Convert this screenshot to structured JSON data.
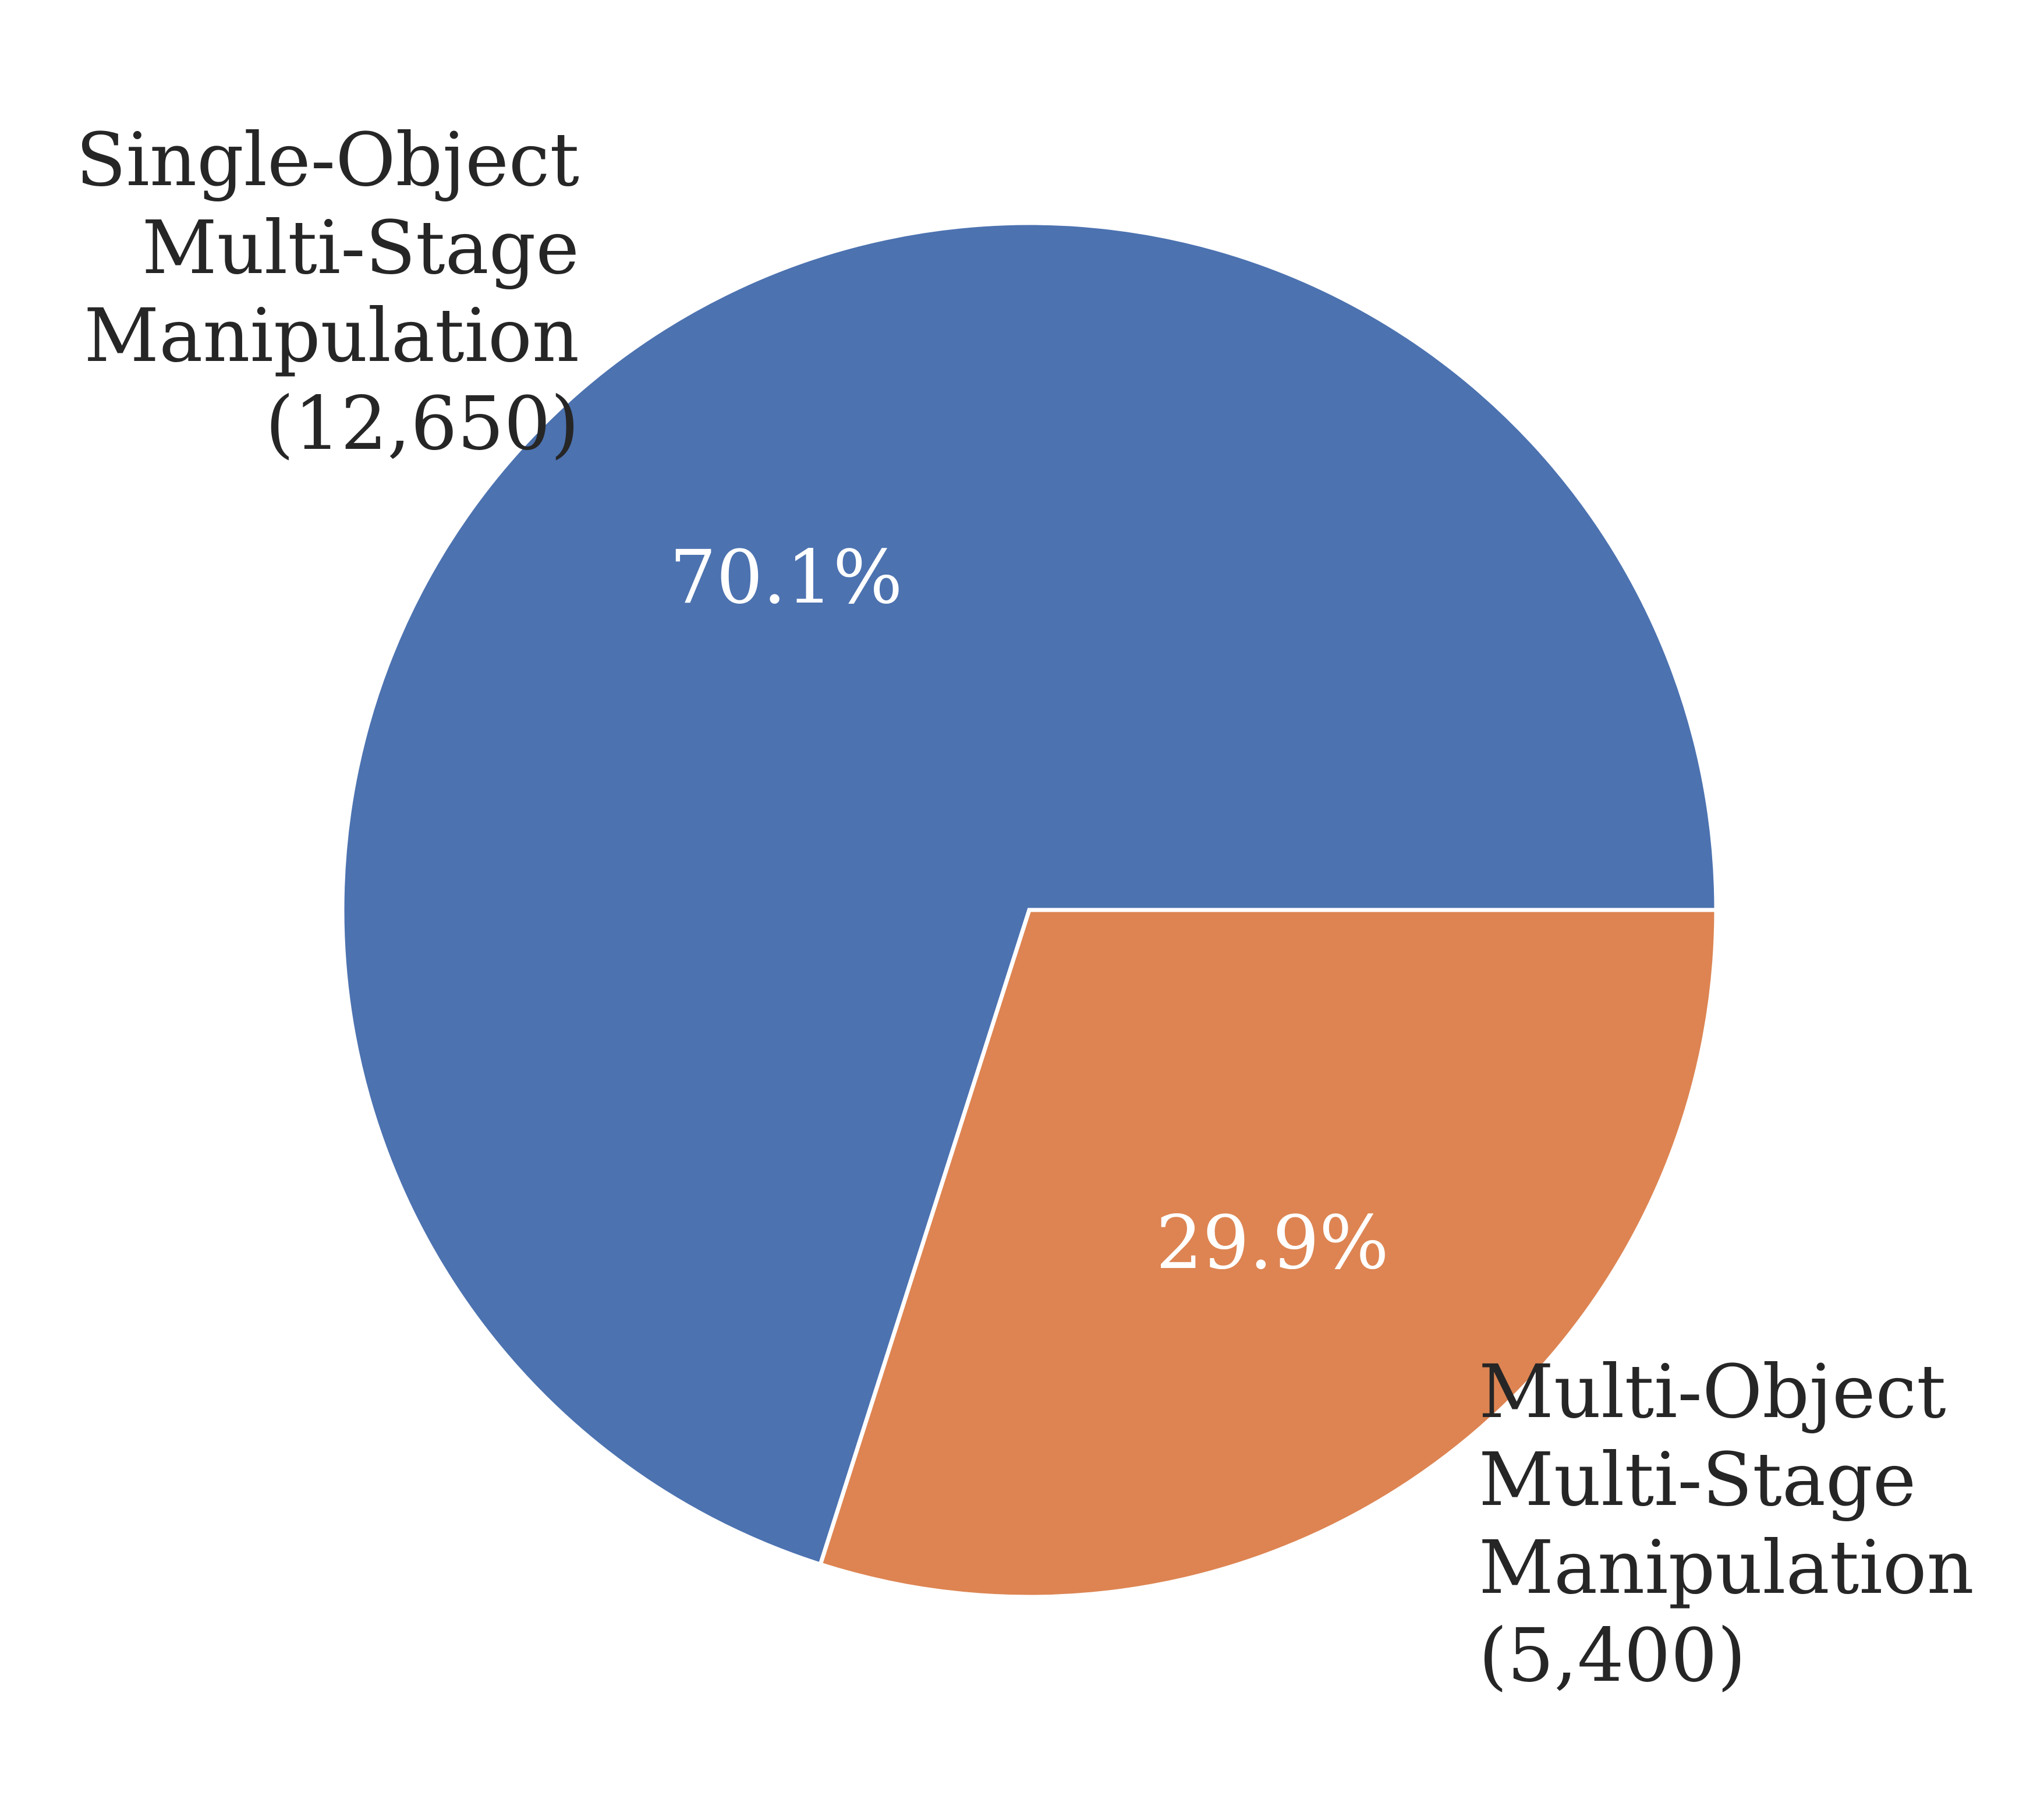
{
  "chart_data": {
    "type": "pie",
    "slices": [
      {
        "label_lines": [
          "Single-Object",
          "Multi-Stage",
          "Manipulation",
          "(12,650)"
        ],
        "value": 12650,
        "percent_label": "70.1%",
        "color": "#4c72b0"
      },
      {
        "label_lines": [
          "Multi-Object",
          "Multi-Stage",
          "Manipulation",
          "(5,400)"
        ],
        "value": 5400,
        "percent_label": "29.9%",
        "color": "#dd8452"
      }
    ],
    "label_color": "#262626",
    "percent_text_color": "#ffffff",
    "wedge_edge_color": "#ffffff",
    "start_angle_deg": 0,
    "direction": "counterclockwise"
  }
}
